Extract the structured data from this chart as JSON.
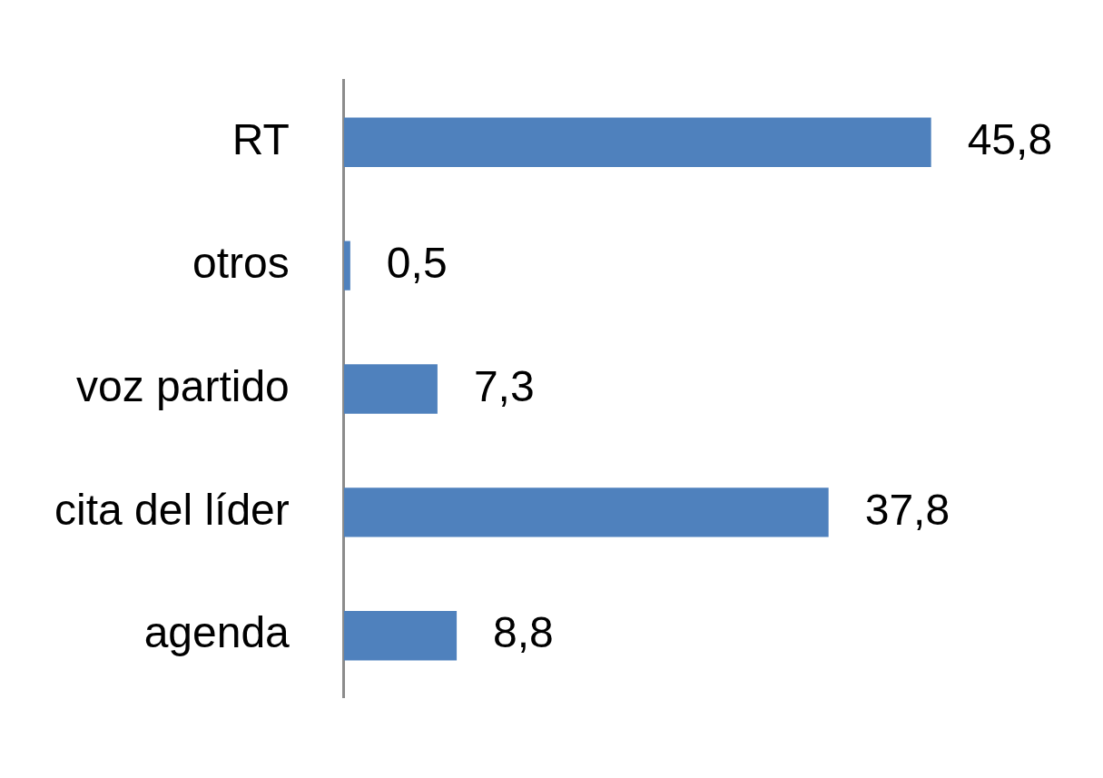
{
  "chart_data": {
    "type": "bar",
    "orientation": "horizontal",
    "categories": [
      "RT",
      "otros",
      "voz partido",
      "cita del líder",
      "agenda"
    ],
    "values": [
      45.8,
      0.5,
      7.3,
      37.8,
      8.8
    ],
    "color": "#4f81bd",
    "value_labels": [
      "45,8",
      "0,5",
      "7,3",
      "37,8",
      "8,8"
    ],
    "legend": false,
    "tick_labels": "y"
  }
}
